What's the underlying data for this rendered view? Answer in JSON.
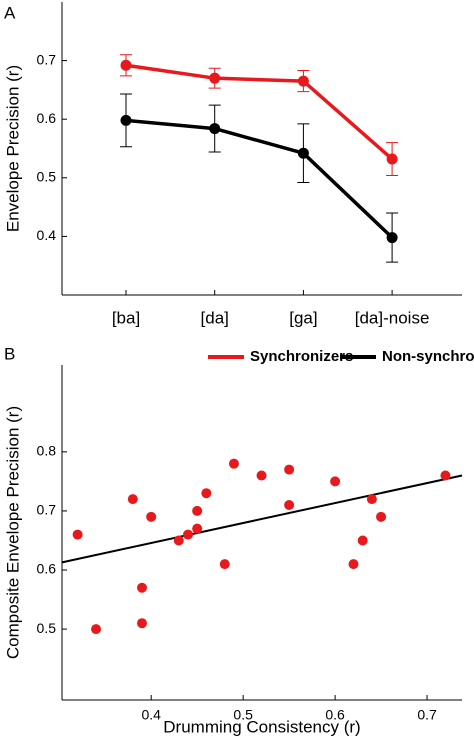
{
  "chart_data": [
    {
      "type": "line",
      "panel_label": "A",
      "y_label": "Envelope Precision (r)",
      "categories": [
        "[ba]",
        "[da]",
        "[ga]",
        "[da]-noise"
      ],
      "ylim": [
        0.3,
        0.8
      ],
      "yticks": [
        0.4,
        0.5,
        0.6,
        0.7
      ],
      "series": [
        {
          "name": "Synchronizers",
          "color": "#e8191d",
          "values": [
            0.692,
            0.67,
            0.665,
            0.532
          ],
          "errors": [
            0.018,
            0.017,
            0.018,
            0.028
          ]
        },
        {
          "name": "Non-synchronizers",
          "color": "#000000",
          "values": [
            0.598,
            0.584,
            0.542,
            0.398
          ],
          "errors": [
            0.045,
            0.04,
            0.05,
            0.042
          ]
        }
      ]
    },
    {
      "type": "scatter",
      "panel_label": "B",
      "y_label": "Composite Envelope Precision (r)",
      "x_label": "Drumming Consistency (r)",
      "color": "#e8191d",
      "x": [
        0.32,
        0.34,
        0.38,
        0.39,
        0.39,
        0.4,
        0.43,
        0.44,
        0.45,
        0.45,
        0.46,
        0.48,
        0.49,
        0.52,
        0.55,
        0.55,
        0.6,
        0.62,
        0.63,
        0.64,
        0.65,
        0.72
      ],
      "values": [
        0.66,
        0.5,
        0.72,
        0.57,
        0.51,
        0.69,
        0.65,
        0.66,
        0.7,
        0.67,
        0.73,
        0.61,
        0.78,
        0.76,
        0.77,
        0.71,
        0.75,
        0.61,
        0.65,
        0.72,
        0.69,
        0.76
      ],
      "fit": {
        "x": [
          0.303,
          0.738
        ],
        "values": [
          0.613,
          0.76
        ]
      },
      "xlim": [
        0.303,
        0.738
      ],
      "xticks": [
        0.4,
        0.5,
        0.6,
        0.7
      ],
      "ylim": [
        0.38,
        0.947
      ],
      "yticks": [
        0.5,
        0.6,
        0.7,
        0.8
      ]
    }
  ]
}
